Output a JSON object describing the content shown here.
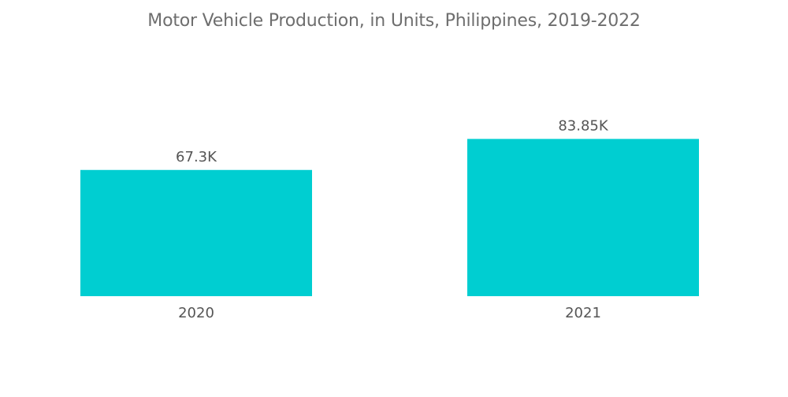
{
  "chart_data": {
    "type": "bar",
    "title": "Motor Vehicle Production, in Units, Philippines, 2019-2022",
    "categories": [
      "2020",
      "2021"
    ],
    "values": [
      67.3,
      83.85
    ],
    "value_labels": [
      "67.3K",
      "83.85K"
    ],
    "unit": "thousand units",
    "xlabel": "",
    "ylabel": "",
    "ylim": [
      0,
      84
    ],
    "grid": false,
    "legend": "none",
    "bar_color": "#00ced1"
  }
}
